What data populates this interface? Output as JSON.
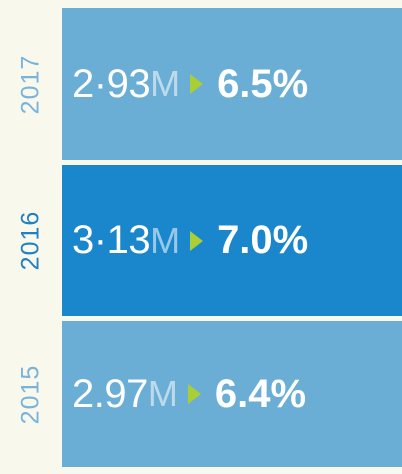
{
  "rows": [
    {
      "year": "2017",
      "value": "2·93",
      "unit": "M",
      "percent": "6.5%"
    },
    {
      "year": "2016",
      "value": "3·13",
      "unit": "M",
      "percent": "7.0%"
    },
    {
      "year": "2015",
      "value": "2.97",
      "unit": "M",
      "percent": "6.4%"
    }
  ]
}
